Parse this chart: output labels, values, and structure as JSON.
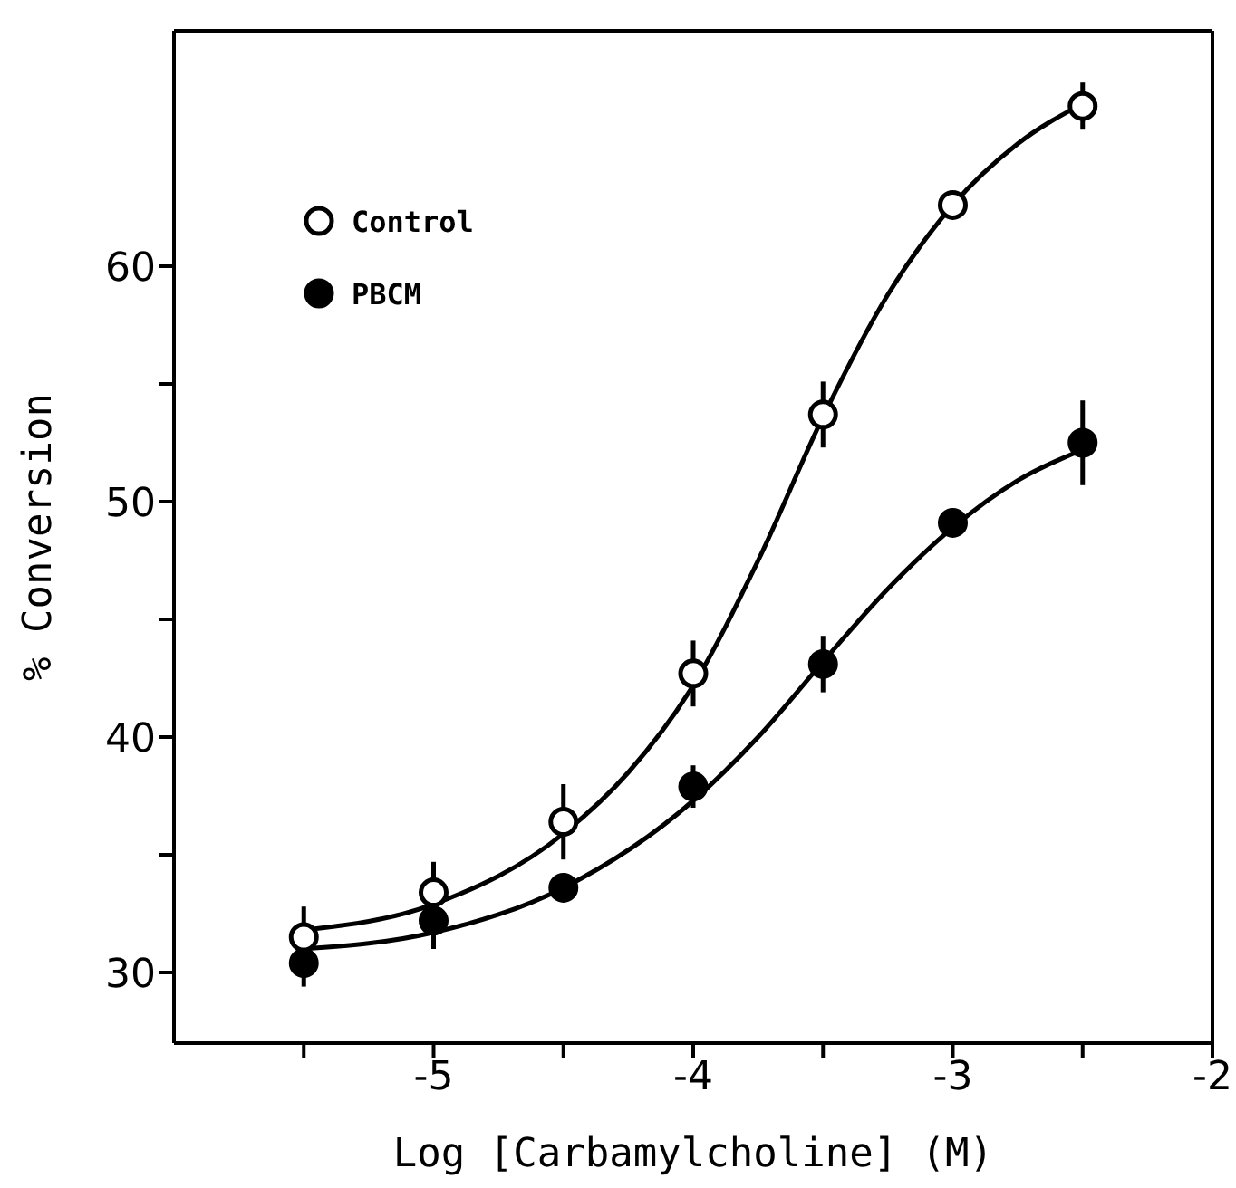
{
  "chart_data": {
    "type": "scatter",
    "xlabel": "Log [Carbamylcholine] (M)",
    "ylabel": "% Conversion",
    "xlim": [
      -6,
      -2
    ],
    "xticks": [
      {
        "value": -5.5,
        "label": null
      },
      -5,
      {
        "value": -4.5,
        "label": null
      },
      -4,
      {
        "value": -3.5,
        "label": null
      },
      -3,
      {
        "value": -2.5,
        "label": null
      },
      -2
    ],
    "ylim": [
      27,
      70
    ],
    "yticks": [
      30,
      {
        "value": 35,
        "label": null
      },
      40,
      {
        "value": 45,
        "label": null
      },
      50,
      {
        "value": 55,
        "label": null
      },
      60
    ],
    "x": [
      -5.5,
      -5,
      -4.5,
      -4,
      -3.5,
      -3,
      -2.5
    ],
    "series": [
      {
        "name": "Control",
        "color": "#ffffff",
        "marker": "circle",
        "values": [
          31.5,
          33.4,
          36.4,
          42.7,
          53.7,
          62.6,
          66.8
        ],
        "errors": [
          1.3,
          1.3,
          1.6,
          1.4,
          1.4,
          0.5,
          1.0
        ]
      },
      {
        "name": "PBCM",
        "color": "#000000",
        "marker": "circle",
        "values": [
          30.4,
          32.2,
          33.6,
          37.9,
          43.1,
          49.1,
          52.5
        ],
        "errors": [
          1.0,
          1.2,
          null,
          0.9,
          1.2,
          null,
          1.8
        ]
      },
      {
        "type": "line",
        "color": "#000000",
        "x": [
          -5.5,
          -5,
          -4.5,
          -4.25,
          -4,
          -3.75,
          -3.5,
          -3.25,
          -3,
          -2.75,
          -2.5
        ],
        "values": [
          31.8,
          32.9,
          35.9,
          38.5,
          42.2,
          47.5,
          53.6,
          58.8,
          62.6,
          65.2,
          66.9
        ]
      },
      {
        "type": "line",
        "color": "#000000",
        "x": [
          -5.5,
          -5,
          -4.5,
          -4,
          -3.75,
          -3.5,
          -3.25,
          -3,
          -2.75,
          -2.5
        ],
        "values": [
          31.0,
          31.7,
          33.6,
          37.3,
          40.0,
          43.2,
          46.3,
          48.9,
          50.9,
          52.2
        ]
      }
    ],
    "marker": "none",
    "legend": "top left"
  }
}
